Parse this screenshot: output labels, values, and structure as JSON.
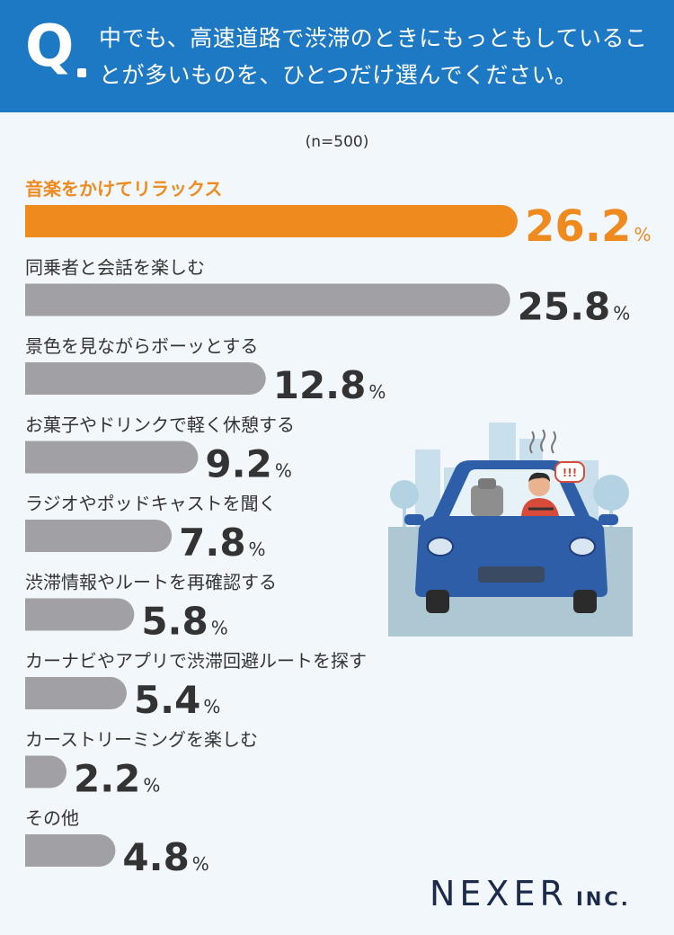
{
  "header": {
    "q_letter": "Q",
    "question": "中でも、高速道路で渋滞のときにもっともしていることが多いものを、ひとつだけ選んでください。"
  },
  "sample_size": "(n=500)",
  "chart_data": {
    "type": "bar",
    "orientation": "horizontal",
    "unit": "%",
    "categories": [
      "音楽をかけてリラックス",
      "同乗者と会話を楽しむ",
      "景色を見ながらボーッとする",
      "お菓子やドリンクで軽く休憩する",
      "ラジオやポッドキャストを聞く",
      "渋滞情報やルートを再確認する",
      "カーナビやアプリで渋滞回避ルートを探す",
      "カーストリーミングを楽しむ",
      "その他"
    ],
    "values": [
      26.2,
      25.8,
      12.8,
      9.2,
      7.8,
      5.8,
      5.4,
      2.2,
      4.8
    ],
    "highlight_index": 0,
    "colors": {
      "highlight": "#ee8a1e",
      "bar": "#a0a0a5",
      "text": "#333333"
    }
  },
  "illustration": {
    "alert_text": "!!!"
  },
  "logo": {
    "main": "NEXER",
    "sub": "INC."
  },
  "colors": {
    "header_bg": "#1e79c4",
    "page_bg": "#f2f7fb"
  }
}
